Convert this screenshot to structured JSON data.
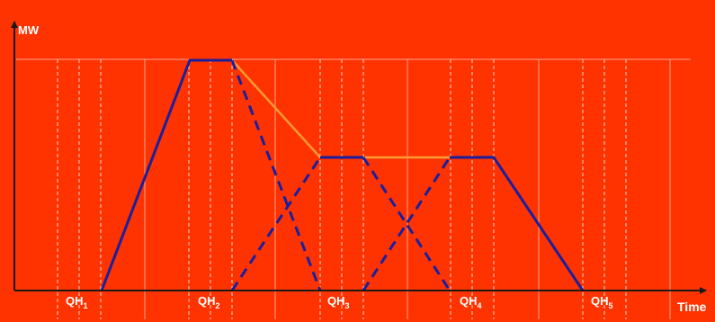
{
  "colors": {
    "background": "#ff3300",
    "axis": "#1a1a1a",
    "grid": "#ffffff",
    "block": "#1a1f9e",
    "envelope": "#ff9933"
  },
  "axes": {
    "y_label": "MW",
    "x_label": "Time"
  },
  "quarter_hours": [
    {
      "base": "QH",
      "sub": "1"
    },
    {
      "base": "QH",
      "sub": "2"
    },
    {
      "base": "QH",
      "sub": "3"
    },
    {
      "base": "QH",
      "sub": "4"
    },
    {
      "base": "QH",
      "sub": "5"
    }
  ]
}
